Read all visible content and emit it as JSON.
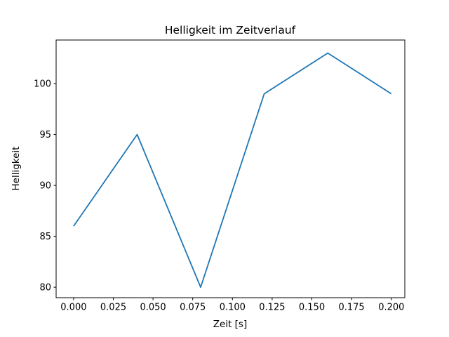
{
  "chart_data": {
    "type": "line",
    "title": "Helligkeit im Zeitverlauf",
    "xlabel": "Zeit [s]",
    "ylabel": "Helligkeit",
    "x": [
      0.0,
      0.04,
      0.08,
      0.12,
      0.16,
      0.2
    ],
    "y": [
      86,
      95,
      80,
      99,
      103,
      99
    ],
    "series": [
      {
        "name": "Helligkeit",
        "x": [
          0.0,
          0.04,
          0.08,
          0.12,
          0.16,
          0.2
        ],
        "values": [
          86,
          95,
          80,
          99,
          103,
          99
        ]
      }
    ],
    "x_ticks": [
      0.0,
      0.025,
      0.05,
      0.075,
      0.1,
      0.125,
      0.15,
      0.175,
      0.2
    ],
    "x_tick_labels": [
      "0.000",
      "0.025",
      "0.050",
      "0.075",
      "0.100",
      "0.125",
      "0.150",
      "0.175",
      "0.200"
    ],
    "y_ticks": [
      80,
      85,
      90,
      95,
      100
    ],
    "y_tick_labels": [
      "80",
      "85",
      "90",
      "95",
      "100"
    ],
    "xlim": [
      -0.011,
      0.2085
    ],
    "ylim": [
      78.97,
      104.28
    ],
    "grid": false,
    "legend": null,
    "line_color": "#1f77b4",
    "spine_color": "#000000",
    "background_color": "#ffffff"
  }
}
